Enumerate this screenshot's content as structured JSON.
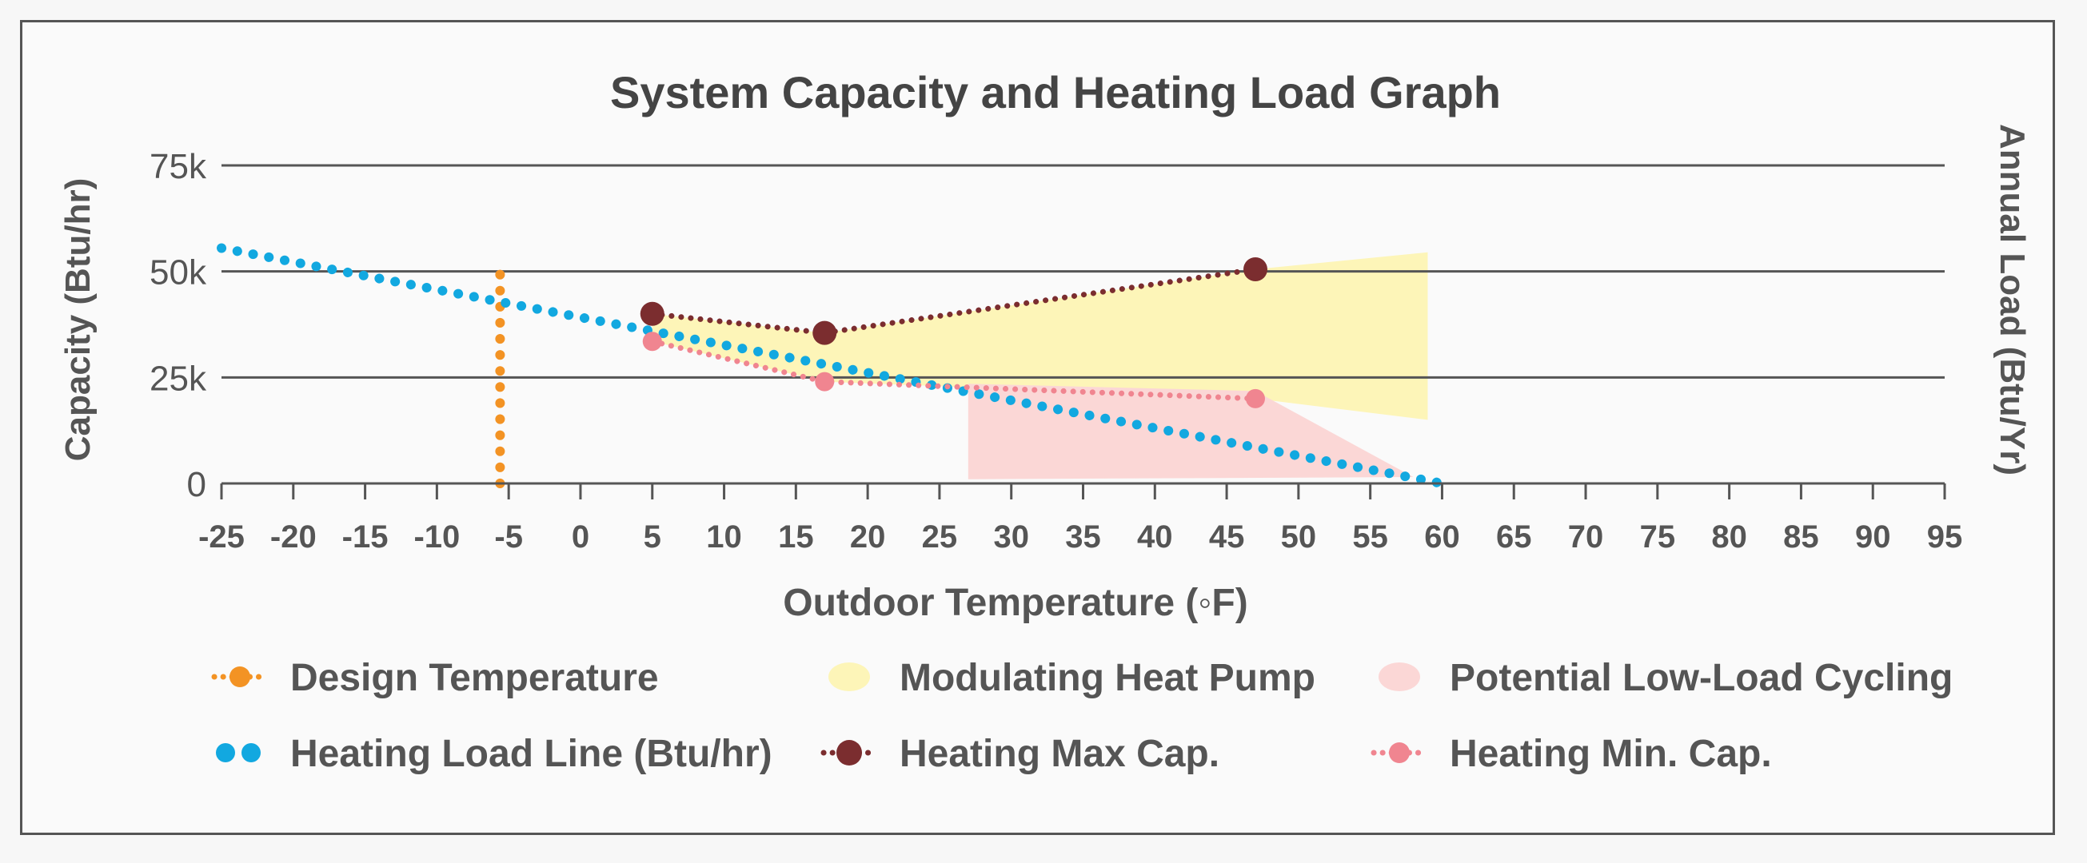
{
  "chart_data": {
    "type": "line",
    "title": "System Capacity and Heating Load Graph",
    "xlabel": "Outdoor Temperature (◦F)",
    "ylabel_left": "Capacity (Btu/hr)",
    "ylabel_right": "Annual Load (Btu/Yr)",
    "xlim": [
      -25,
      95
    ],
    "ylim": [
      0,
      75000
    ],
    "x_ticks": [
      -25,
      -20,
      -15,
      -10,
      -5,
      0,
      5,
      10,
      15,
      20,
      25,
      30,
      35,
      40,
      45,
      50,
      55,
      60,
      65,
      70,
      75,
      80,
      85,
      90,
      95
    ],
    "x_tick_labels": [
      "-25",
      "-20",
      "-15",
      "-10",
      "-5",
      "0",
      "5",
      "10",
      "15",
      "20",
      "25",
      "30",
      "35",
      "40",
      "45",
      "50",
      "55",
      "60",
      "65",
      "70",
      "75",
      "80",
      "85",
      "90",
      "95"
    ],
    "y_ticks": [
      0,
      25000,
      50000,
      75000
    ],
    "y_tick_labels": [
      "0",
      "25k",
      "50k",
      "75k"
    ],
    "grid": "horizontal",
    "legend_placement": "bottom",
    "series": [
      {
        "name": "Design Temperature",
        "kind": "vline",
        "color": "#f39324",
        "x": [
          -5.6,
          -5.6
        ],
        "y": [
          0,
          52500
        ]
      },
      {
        "name": "Heating Load Line (Btu/hr)",
        "kind": "dotted-line",
        "color": "#12a8e0",
        "x": [
          -25,
          60
        ],
        "y": [
          55500,
          0
        ]
      },
      {
        "name": "Heating Max Cap.",
        "kind": "marker-line",
        "color": "#7b2d2f",
        "x": [
          5,
          17,
          47
        ],
        "y": [
          40000,
          35500,
          50500
        ]
      },
      {
        "name": "Heating Min. Cap.",
        "kind": "marker-line",
        "color": "#f08590",
        "x": [
          5,
          17,
          47
        ],
        "y": [
          33500,
          24000,
          20000
        ]
      }
    ],
    "areas": [
      {
        "name": "Modulating Heat Pump",
        "color": "#fdf5b8",
        "polygon": [
          [
            5,
            40000
          ],
          [
            17,
            35500
          ],
          [
            47,
            50500
          ],
          [
            59,
            54500
          ],
          [
            59,
            15000
          ],
          [
            47,
            20000
          ],
          [
            17,
            24000
          ],
          [
            5,
            33500
          ]
        ]
      },
      {
        "name": "Potential Low-Load Cycling",
        "color": "#fbd7d6",
        "polygon": [
          [
            27,
            23500
          ],
          [
            47,
            21800
          ],
          [
            58,
            1500
          ],
          [
            27,
            1000
          ]
        ]
      }
    ],
    "legend": [
      {
        "label": "Design Temperature",
        "icon": "orange-dotted-marker"
      },
      {
        "label": "Modulating Heat Pump",
        "icon": "yellow-area"
      },
      {
        "label": "Potential Low-Load Cycling",
        "icon": "pink-area"
      },
      {
        "label": "Heating Load Line (Btu/hr)",
        "icon": "blue-dots"
      },
      {
        "label": "Heating Max Cap.",
        "icon": "dark-red-marker"
      },
      {
        "label": "Heating Min. Cap.",
        "icon": "pink-marker"
      }
    ]
  }
}
